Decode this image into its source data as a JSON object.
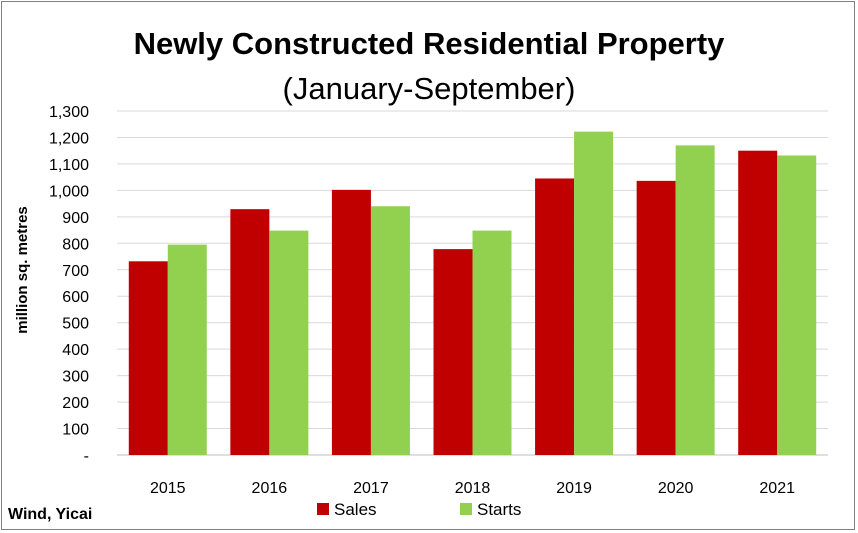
{
  "chart_data": {
    "type": "bar",
    "title": "Newly Constructed Residential Property",
    "subtitle": "(January-September)",
    "ylabel": "million sq. metres",
    "xlabel": "",
    "categories": [
      "2015",
      "2016",
      "2017",
      "2018",
      "2019",
      "2020",
      "2021"
    ],
    "series": [
      {
        "name": "Sales",
        "color": "#c00000",
        "values": [
          732,
          929,
          1002,
          778,
          1045,
          1036,
          1150
        ]
      },
      {
        "name": "Starts",
        "color": "#92d050",
        "values": [
          795,
          848,
          940,
          848,
          1222,
          1170,
          1132
        ]
      }
    ],
    "ylim": [
      0,
      1300
    ],
    "yticks": [
      "-",
      "100",
      "200",
      "300",
      "400",
      "500",
      "600",
      "700",
      "800",
      "900",
      "1,000",
      "1,100",
      "1,200",
      "1,300"
    ],
    "grid": true,
    "legend_position": "bottom",
    "source": "Wind, Yicai"
  }
}
